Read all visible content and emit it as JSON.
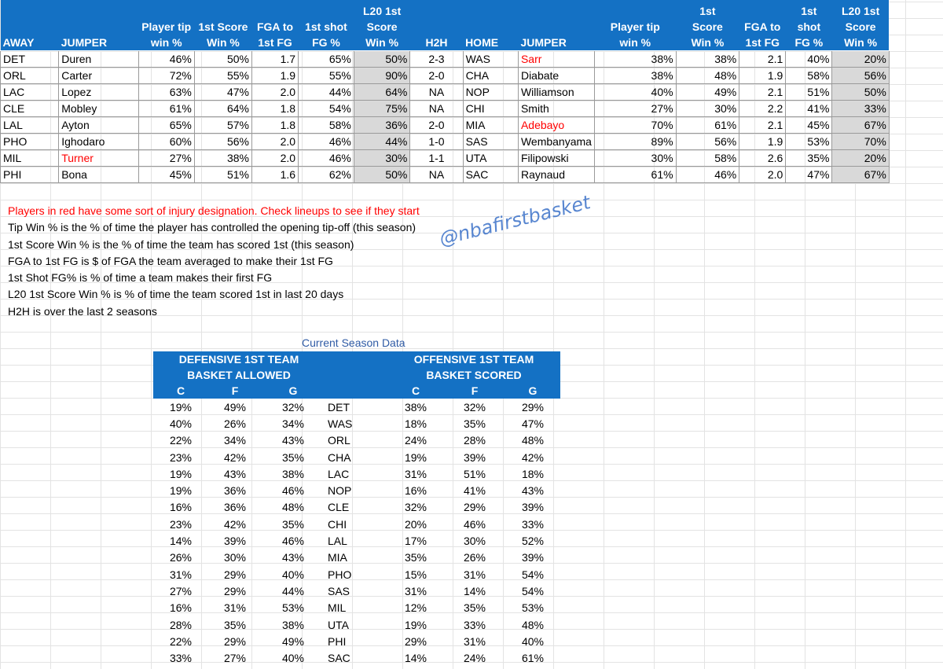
{
  "matchups": {
    "headers": {
      "away": "AWAY",
      "jumper": "JUMPER",
      "tip_l1": "Player tip",
      "tip_l2": "win %",
      "score_l1": "1st Score",
      "score_l2": "Win %",
      "fga_l1": "FGA to",
      "fga_l2": "1st FG",
      "shot_l1": "1st shot",
      "shot_l2": "FG %",
      "l20_l1": "L20 1st",
      "l20_l2": "Score",
      "l20_l3": "Win %",
      "h2h": "H2H",
      "home": "HOME",
      "home_jumper": "JUMPER",
      "h_tip_l1": "Player tip",
      "h_tip_l2": "win %",
      "h_score_l1": "1st",
      "h_score_l2": "Score",
      "h_score_l3": "Win %",
      "h_fga_l1": "FGA to",
      "h_fga_l2": "1st FG",
      "h_shot_l1": "1st shot",
      "h_shot_l2": "FG %",
      "h_l20_l1": "L20 1st",
      "h_l20_l2": "Score",
      "h_l20_l3": "Win %"
    },
    "rows": [
      {
        "away": "DET",
        "away_jumper": "Duren",
        "tip": "46%",
        "score": "50%",
        "fga": "1.7",
        "shot": "65%",
        "l20": "50%",
        "h2h": "2-3",
        "home": "WAS",
        "home_jumper": "Sarr",
        "h_tip": "38%",
        "h_score": "38%",
        "h_fga": "2.1",
        "h_shot": "40%",
        "h_l20": "20%"
      },
      {
        "away": "ORL",
        "away_jumper": "Carter",
        "tip": "72%",
        "score": "55%",
        "fga": "1.9",
        "shot": "55%",
        "l20": "90%",
        "h2h": "2-0",
        "home": "CHA",
        "home_jumper": "Diabate",
        "h_tip": "38%",
        "h_score": "48%",
        "h_fga": "1.9",
        "h_shot": "58%",
        "h_l20": "56%"
      },
      {
        "away": "LAC",
        "away_jumper": "Lopez",
        "tip": "63%",
        "score": "47%",
        "fga": "2.0",
        "shot": "44%",
        "l20": "64%",
        "h2h": "NA",
        "home": "NOP",
        "home_jumper": "Williamson",
        "h_tip": "40%",
        "h_score": "49%",
        "h_fga": "2.1",
        "h_shot": "51%",
        "h_l20": "50%"
      },
      {
        "away": "CLE",
        "away_jumper": "Mobley",
        "tip": "61%",
        "score": "64%",
        "fga": "1.8",
        "shot": "54%",
        "l20": "75%",
        "h2h": "NA",
        "home": "CHI",
        "home_jumper": "Smith",
        "h_tip": "27%",
        "h_score": "30%",
        "h_fga": "2.2",
        "h_shot": "41%",
        "h_l20": "33%"
      },
      {
        "away": "LAL",
        "away_jumper": "Ayton",
        "tip": "65%",
        "score": "57%",
        "fga": "1.8",
        "shot": "58%",
        "l20": "36%",
        "h2h": "2-0",
        "home": "MIA",
        "home_jumper": "Adebayo",
        "h_tip": "70%",
        "h_score": "61%",
        "h_fga": "2.1",
        "h_shot": "45%",
        "h_l20": "67%"
      },
      {
        "away": "PHO",
        "away_jumper": "Ighodaro",
        "tip": "60%",
        "score": "56%",
        "fga": "2.0",
        "shot": "46%",
        "l20": "44%",
        "h2h": "1-0",
        "home": "SAS",
        "home_jumper": "Wembanyama",
        "h_tip": "89%",
        "h_score": "56%",
        "h_fga": "1.9",
        "h_shot": "53%",
        "h_l20": "70%"
      },
      {
        "away": "MIL",
        "away_jumper": "Turner",
        "tip": "27%",
        "score": "38%",
        "fga": "2.0",
        "shot": "46%",
        "l20": "30%",
        "h2h": "1-1",
        "home": "UTA",
        "home_jumper": "Filipowski",
        "h_tip": "30%",
        "h_score": "58%",
        "h_fga": "2.6",
        "h_shot": "35%",
        "h_l20": "20%"
      },
      {
        "away": "PHI",
        "away_jumper": "Bona",
        "tip": "45%",
        "score": "51%",
        "fga": "1.6",
        "shot": "62%",
        "l20": "50%",
        "h2h": "NA",
        "home": "SAC",
        "home_jumper": "Raynaud",
        "h_tip": "61%",
        "h_score": "46%",
        "h_fga": "2.0",
        "h_shot": "47%",
        "h_l20": "67%"
      }
    ],
    "injured_players": [
      "Sarr",
      "Adebayo",
      "Turner"
    ],
    "injury_color": "#ff0000",
    "header_color": "#1471c4",
    "shade_color": "#d9d9d9"
  },
  "notes": {
    "injury_note": "Players in red have some sort of injury designation.  Check lineups to see if they start",
    "tip_note": "Tip Win % is the % of time the player has controlled the opening tip-off (this season)",
    "score_note": "1st Score Win % is the % of time the team has scored 1st (this season)",
    "fga_note": "FGA to 1st FG is $ of FGA the team averaged to make their 1st FG",
    "shot_note": "1st Shot FG% is % of time a team makes their first FG",
    "l20_note": "L20 1st Score Win % is % of time the team scored 1st in last 20 days",
    "h2h_note": "H2H is over the last 2 seasons"
  },
  "watermark": "@nbafirstbasket",
  "season": {
    "title": "Current Season Data",
    "defensive_l1": "DEFENSIVE 1ST TEAM",
    "defensive_l2": "BASKET ALLOWED",
    "offensive_l1": "OFFENSIVE 1ST TEAM",
    "offensive_l2": "BASKET SCORED",
    "pos_c": "C",
    "pos_f": "F",
    "pos_g": "G",
    "rows": [
      {
        "d_c": "19%",
        "d_f": "49%",
        "d_g": "32%",
        "team": "DET",
        "o_c": "38%",
        "o_f": "32%",
        "o_g": "29%"
      },
      {
        "d_c": "40%",
        "d_f": "26%",
        "d_g": "34%",
        "team": "WAS",
        "o_c": "18%",
        "o_f": "35%",
        "o_g": "47%"
      },
      {
        "d_c": "22%",
        "d_f": "34%",
        "d_g": "43%",
        "team": "ORL",
        "o_c": "24%",
        "o_f": "28%",
        "o_g": "48%"
      },
      {
        "d_c": "23%",
        "d_f": "42%",
        "d_g": "35%",
        "team": "CHA",
        "o_c": "19%",
        "o_f": "39%",
        "o_g": "42%"
      },
      {
        "d_c": "19%",
        "d_f": "43%",
        "d_g": "38%",
        "team": "LAC",
        "o_c": "31%",
        "o_f": "51%",
        "o_g": "18%"
      },
      {
        "d_c": "19%",
        "d_f": "36%",
        "d_g": "46%",
        "team": "NOP",
        "o_c": "16%",
        "o_f": "41%",
        "o_g": "43%"
      },
      {
        "d_c": "16%",
        "d_f": "36%",
        "d_g": "48%",
        "team": "CLE",
        "o_c": "32%",
        "o_f": "29%",
        "o_g": "39%"
      },
      {
        "d_c": "23%",
        "d_f": "42%",
        "d_g": "35%",
        "team": "CHI",
        "o_c": "20%",
        "o_f": "46%",
        "o_g": "33%"
      },
      {
        "d_c": "14%",
        "d_f": "39%",
        "d_g": "46%",
        "team": "LAL",
        "o_c": "17%",
        "o_f": "30%",
        "o_g": "52%"
      },
      {
        "d_c": "26%",
        "d_f": "30%",
        "d_g": "43%",
        "team": "MIA",
        "o_c": "35%",
        "o_f": "26%",
        "o_g": "39%"
      },
      {
        "d_c": "31%",
        "d_f": "29%",
        "d_g": "40%",
        "team": "PHO",
        "o_c": "15%",
        "o_f": "31%",
        "o_g": "54%"
      },
      {
        "d_c": "27%",
        "d_f": "29%",
        "d_g": "44%",
        "team": "SAS",
        "o_c": "31%",
        "o_f": "14%",
        "o_g": "54%"
      },
      {
        "d_c": "16%",
        "d_f": "31%",
        "d_g": "53%",
        "team": "MIL",
        "o_c": "12%",
        "o_f": "35%",
        "o_g": "53%"
      },
      {
        "d_c": "28%",
        "d_f": "35%",
        "d_g": "38%",
        "team": "UTA",
        "o_c": "19%",
        "o_f": "33%",
        "o_g": "48%"
      },
      {
        "d_c": "22%",
        "d_f": "29%",
        "d_g": "49%",
        "team": "PHI",
        "o_c": "29%",
        "o_f": "31%",
        "o_g": "40%"
      },
      {
        "d_c": "33%",
        "d_f": "27%",
        "d_g": "40%",
        "team": "SAC",
        "o_c": "14%",
        "o_f": "24%",
        "o_g": "61%"
      }
    ]
  }
}
